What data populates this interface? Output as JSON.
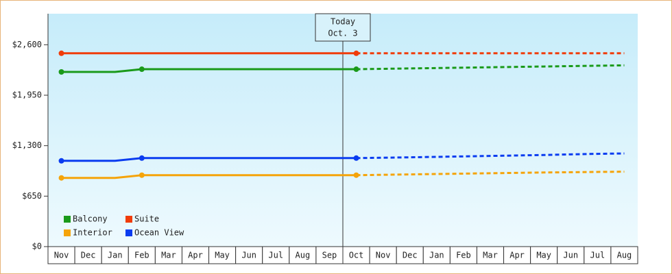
{
  "chart_data": {
    "type": "line",
    "categories": [
      "Nov",
      "Dec",
      "Jan",
      "Feb",
      "Mar",
      "Apr",
      "May",
      "Jun",
      "Jul",
      "Aug",
      "Sep",
      "Oct",
      "Nov",
      "Dec",
      "Jan",
      "Feb",
      "Mar",
      "Apr",
      "May",
      "Jun",
      "Jul",
      "Aug"
    ],
    "series": [
      {
        "name": "Balcony",
        "color": "#1a9a1a",
        "values": [
          2250,
          2250,
          2250,
          2285,
          2285,
          2285,
          2285,
          2285,
          2285,
          2285,
          2285,
          2285,
          2290,
          2295,
          2300,
          2305,
          2310,
          2315,
          2320,
          2325,
          2330,
          2335
        ]
      },
      {
        "name": "Suite",
        "color": "#f03c0a",
        "values": [
          2490,
          2490,
          2490,
          2490,
          2490,
          2490,
          2490,
          2490,
          2490,
          2490,
          2490,
          2490,
          2490,
          2490,
          2490,
          2490,
          2490,
          2490,
          2490,
          2490,
          2490,
          2490
        ]
      },
      {
        "name": "Interior",
        "color": "#f5a40a",
        "values": [
          885,
          885,
          885,
          920,
          920,
          920,
          920,
          920,
          920,
          920,
          920,
          920,
          925,
          930,
          935,
          940,
          945,
          950,
          955,
          958,
          962,
          965
        ]
      },
      {
        "name": "Ocean View",
        "color": "#0a3cf0",
        "values": [
          1105,
          1105,
          1105,
          1140,
          1140,
          1140,
          1140,
          1140,
          1140,
          1140,
          1140,
          1140,
          1145,
          1150,
          1156,
          1162,
          1168,
          1174,
          1180,
          1188,
          1195,
          1200
        ]
      }
    ],
    "forecast_from": 11,
    "annotation": {
      "lines": [
        "Today",
        "Oct. 3"
      ],
      "category_index": 11
    },
    "ylim": [
      0,
      3000
    ],
    "yticks": [
      {
        "value": 0,
        "label": "$0"
      },
      {
        "value": 650,
        "label": "$650"
      },
      {
        "value": 1300,
        "label": "$1,300"
      },
      {
        "value": 1950,
        "label": "$1,950"
      },
      {
        "value": 2600,
        "label": "$2,600"
      }
    ],
    "legend": "lower-left"
  }
}
